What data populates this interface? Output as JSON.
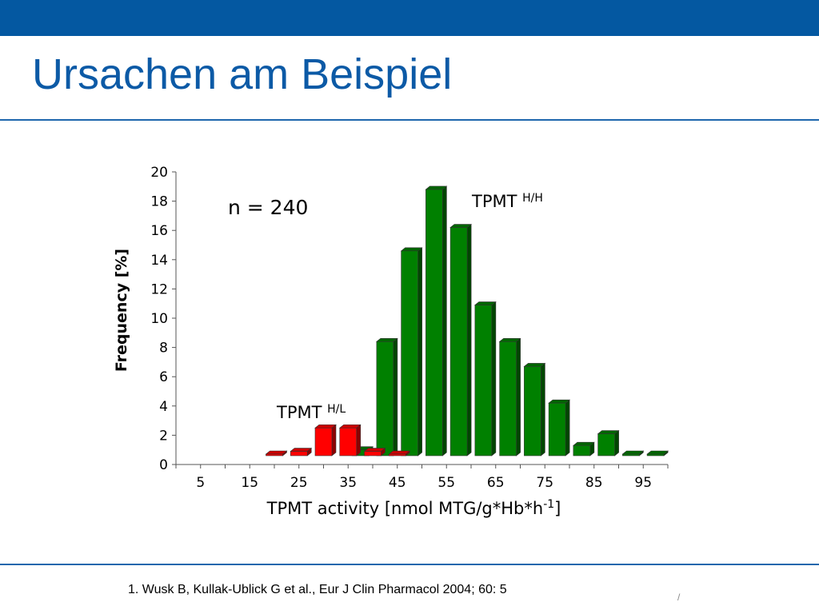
{
  "header": {
    "title": "Ursachen am Beispiel"
  },
  "footer": {
    "reference": "1. Wusk B, Kullak-Ublick G et al., Eur J Clin Pharmacol 2004; 60: 5",
    "page": "/"
  },
  "chart_data": {
    "type": "bar",
    "xlabel": "TPMT activity [nmol MTG/g*Hb*h",
    "xlabel_sup": "-1",
    "xlabel_end": "]",
    "ylabel": "Frequency [%]",
    "ylim": [
      0,
      20
    ],
    "yticks": [
      0,
      2,
      4,
      6,
      8,
      10,
      12,
      14,
      16,
      18,
      20
    ],
    "xtick_labels": [
      "5",
      "15",
      "25",
      "35",
      "45",
      "55",
      "65",
      "75",
      "85",
      "95"
    ],
    "annotation": "n = 240",
    "series": [
      {
        "name": "TPMT H/L",
        "label_main": "TPMT",
        "label_sup": "H/L",
        "color": "#ff0000",
        "x": [
          20,
          25,
          30,
          35,
          40,
          45
        ],
        "values": [
          0.5,
          0.9,
          2.5,
          2.5,
          0.9,
          0.5
        ]
      },
      {
        "name": "TPMT H/H",
        "label_main": "TPMT",
        "label_sup": "H/H",
        "color": "#008000",
        "x": [
          37.5,
          42.5,
          47.5,
          52.5,
          57.5,
          62.5,
          67.5,
          72.5,
          77.5,
          82.5,
          87.5,
          92.5,
          97.5
        ],
        "values": [
          1.0,
          8.4,
          14.6,
          18.8,
          16.2,
          10.9,
          8.4,
          6.7,
          4.2,
          1.3,
          2.1,
          0.4,
          0.4
        ]
      }
    ],
    "grid": false
  }
}
